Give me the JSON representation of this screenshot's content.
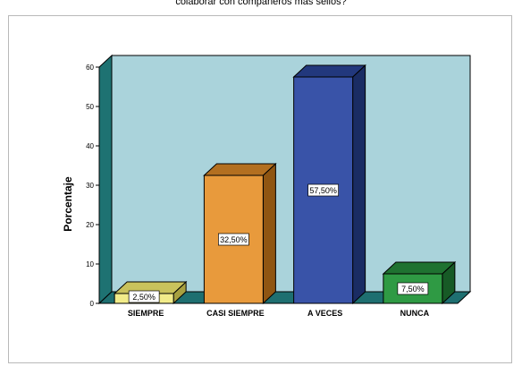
{
  "chart_data": {
    "type": "bar",
    "title": "colaborar con compañeros más sellos?",
    "ylabel": "Porcentaje",
    "xlabel": "",
    "categories": [
      "SIEMPRE",
      "CASI SIEMPRE",
      "A VECES",
      "NUNCA"
    ],
    "values": [
      2.5,
      32.5,
      57.5,
      7.5
    ],
    "data_labels": [
      "2,50%",
      "32,50%",
      "57,50%",
      "7,50%"
    ],
    "ylim": [
      0,
      60
    ],
    "yticks": [
      "0",
      "10",
      "20",
      "30",
      "40",
      "50",
      "60"
    ],
    "grid": false,
    "legend": "none",
    "bar_colors": [
      {
        "front": "#f2ec8a",
        "top": "#c9c25c",
        "side": "#a7a040"
      },
      {
        "front": "#e89a3c",
        "top": "#b36f20",
        "side": "#8f5512"
      },
      {
        "front": "#3953a8",
        "top": "#22387d",
        "side": "#1a2c63"
      },
      {
        "front": "#2f9a44",
        "top": "#1f7231",
        "side": "#175a26"
      }
    ],
    "wall_color": "#aad3db",
    "wall_side_color": "#1e7272",
    "floor_color": "#1e6f70"
  }
}
